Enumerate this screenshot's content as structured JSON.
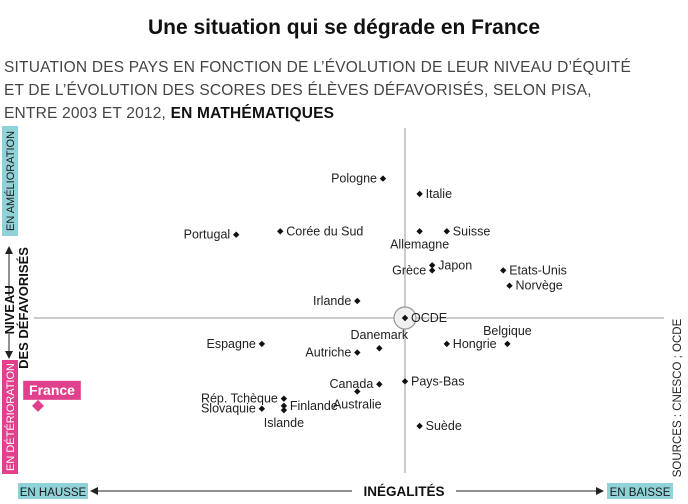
{
  "title": "Une situation qui se dégrade en France",
  "subtitle": {
    "line1": "SITUATION DES PAYS EN FONCTION DE L’ÉVOLUTION DE LEUR NIVEAU D’ÉQUITÉ",
    "line2": "ET DE L’ÉVOLUTION DES SCORES DES ÉLÈVES DÉFAVORISÉS, SELON PISA,",
    "line3_prefix": "ENTRE 2003 ET 2012, ",
    "line3_bold": "EN MATHÉMATIQUES"
  },
  "source": "SOURCES : CNESCO ; OCDE",
  "colors": {
    "hausse_bg": "#8fd3d9",
    "amelioration_bg": "#8fd3d9",
    "deterioration_bg": "#e0408c",
    "baisse_bg": "#8fd3d9",
    "france": "#e0408c",
    "axis": "#999999",
    "points": "#111111"
  },
  "chart_data": {
    "type": "scatter",
    "xlabel": "INÉGALITÉS",
    "ylabel": "NIVEAU DES DÉFAVORISÉS",
    "x_left_label": "EN HAUSSE",
    "x_right_label": "EN BAISSE",
    "y_top_label": "EN AMÉLIORATION",
    "y_bottom_label": "EN DÉTÉRIORATION",
    "xlim": [
      -100,
      100
    ],
    "ylim": [
      -100,
      100
    ],
    "points": [
      {
        "name": "Pologne",
        "x": -6,
        "y": 82,
        "label_side": "left"
      },
      {
        "name": "Italie",
        "x": 7,
        "y": 73,
        "label_side": "right"
      },
      {
        "name": "Portugal",
        "x": -46,
        "y": 49,
        "label_side": "left"
      },
      {
        "name": "Corée du Sud",
        "x": -34,
        "y": 51,
        "label_side": "right"
      },
      {
        "name": "Suisse",
        "x": 20,
        "y": 51,
        "label_side": "right"
      },
      {
        "name": "Allemagne",
        "x": 7,
        "y": 51,
        "label_side": "below"
      },
      {
        "name": "Japon",
        "x": 13,
        "y": 31,
        "label_side": "right"
      },
      {
        "name": "Grèce",
        "x": 13,
        "y": 28,
        "label_side": "left"
      },
      {
        "name": "Etats-Unis",
        "x": 47,
        "y": 28,
        "label_side": "right"
      },
      {
        "name": "Norvège",
        "x": 50,
        "y": 19,
        "label_side": "right"
      },
      {
        "name": "Irlande",
        "x": -13,
        "y": 10,
        "label_side": "left"
      },
      {
        "name": "OCDE",
        "x": 0,
        "y": 0,
        "label_side": "right",
        "reference": true
      },
      {
        "name": "Belgique",
        "x": 49,
        "y": -18,
        "label_side": "above"
      },
      {
        "name": "Espagne",
        "x": -39,
        "y": -18,
        "label_side": "left"
      },
      {
        "name": "Hongrie",
        "x": 20,
        "y": -18,
        "label_side": "right"
      },
      {
        "name": "Danemark",
        "x": -7,
        "y": -21,
        "label_side": "above"
      },
      {
        "name": "Autriche",
        "x": -13,
        "y": -24,
        "label_side": "left"
      },
      {
        "name": "Canada",
        "x": -7,
        "y": -46,
        "label_side": "left"
      },
      {
        "name": "Pays-Bas",
        "x": 0,
        "y": -44,
        "label_side": "right"
      },
      {
        "name": "Australie",
        "x": -13,
        "y": -51,
        "label_side": "below"
      },
      {
        "name": "Rép. Tchèque",
        "x": -33,
        "y": -56,
        "label_side": "left"
      },
      {
        "name": "Finlande",
        "x": -33,
        "y": -61,
        "label_side": "right"
      },
      {
        "name": "Slovaquie",
        "x": -39,
        "y": -63,
        "label_side": "left"
      },
      {
        "name": "Islande",
        "x": -33,
        "y": -64,
        "label_side": "below"
      },
      {
        "name": "Suède",
        "x": 7,
        "y": -75,
        "label_side": "right"
      },
      {
        "name": "France",
        "x": -100,
        "y": -61,
        "label_side": "above",
        "highlight": true
      }
    ]
  }
}
